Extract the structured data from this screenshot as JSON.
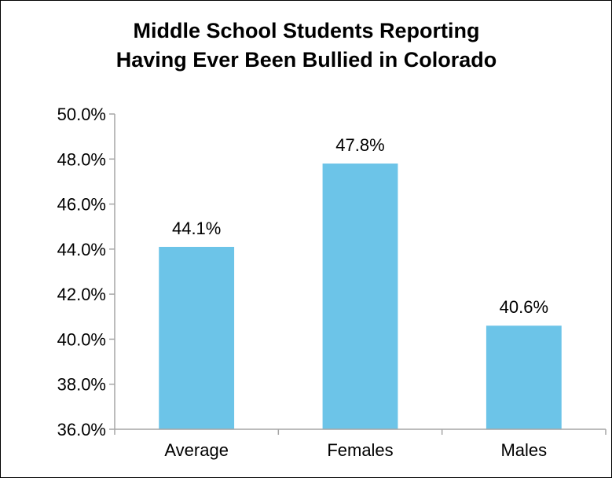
{
  "chart_data": {
    "type": "bar",
    "title": [
      "Middle School Students Reporting",
      "Having Ever Been Bullied in Colorado"
    ],
    "categories": [
      "Average",
      "Females",
      "Males"
    ],
    "values": [
      44.1,
      47.8,
      40.6
    ],
    "data_labels": [
      "44.1%",
      "47.8%",
      "40.6%"
    ],
    "ylim": [
      36.0,
      50.0
    ],
    "y_ticks": [
      36.0,
      38.0,
      40.0,
      42.0,
      44.0,
      46.0,
      48.0,
      50.0
    ],
    "y_tick_labels": [
      "36.0%",
      "38.0%",
      "40.0%",
      "42.0%",
      "44.0%",
      "46.0%",
      "48.0%",
      "50.0%"
    ],
    "xlabel": "",
    "ylabel": "",
    "grid": false,
    "legend": "none",
    "bar_color": "#6cc4e8",
    "axis_color": "#a6a6a6"
  }
}
